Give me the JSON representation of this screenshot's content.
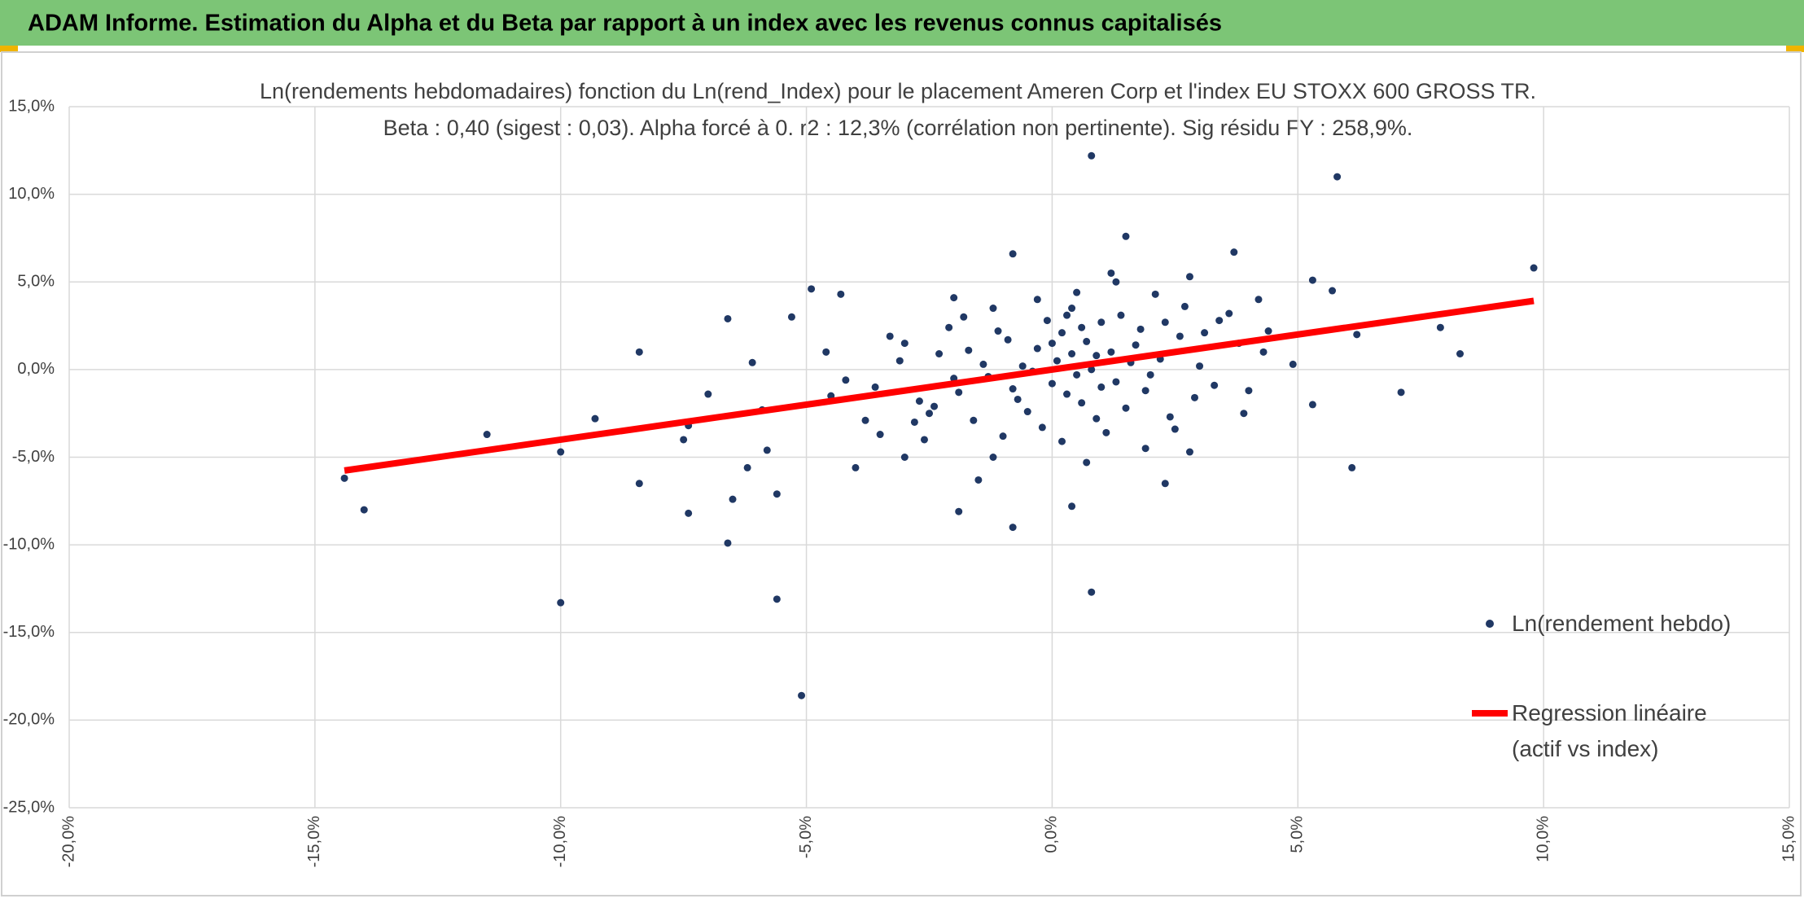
{
  "banner_title": "ADAM Informe. Estimation du Alpha et du Beta par rapport à un index avec les revenus connus capitalisés",
  "chart_data": {
    "type": "scatter",
    "title": "Ln(rendements hebdomadaires) fonction du Ln(rend_Index) pour le placement Ameren Corp et l'index EU STOXX 600 GROSS TR.",
    "subtitle": "Beta : 0,40 (sigest : 0,03). Alpha forcé à 0. r2 : 12,3% (corrélation non pertinente). Sig résidu FY : 258,9%.",
    "xlim": [
      -20,
      15
    ],
    "xticks": [
      {
        "value": -20,
        "label": "-20,0%"
      },
      {
        "value": -15,
        "label": "-15,0%"
      },
      {
        "value": -10,
        "label": "-10,0%"
      },
      {
        "value": -5,
        "label": "-5,0%"
      },
      {
        "value": 0,
        "label": "0,0%"
      },
      {
        "value": 5,
        "label": "5,0%"
      },
      {
        "value": 10,
        "label": "10,0%"
      },
      {
        "value": 15,
        "label": "15,0%"
      }
    ],
    "ylim": [
      -25,
      15
    ],
    "yticks": [
      {
        "value": -25,
        "label": "-25,0%"
      },
      {
        "value": -20,
        "label": "-20,0%"
      },
      {
        "value": -15,
        "label": "-15,0%"
      },
      {
        "value": -10,
        "label": "-10,0%"
      },
      {
        "value": -5,
        "label": "-5,0%"
      },
      {
        "value": 0,
        "label": "0,0%"
      },
      {
        "value": 5,
        "label": "5,0%"
      },
      {
        "value": 10,
        "label": "10,0%"
      },
      {
        "value": 15,
        "label": "15,0%"
      }
    ],
    "grid": true,
    "legend": "right",
    "series": [
      {
        "name": "Ln(rendement hebdo)",
        "type": "scatter",
        "color": "#203864",
        "x": [
          -14.4,
          -14.0,
          -11.5,
          -10.0,
          -10.0,
          -9.3,
          -8.4,
          -8.4,
          -7.5,
          -7.4,
          -7.4,
          -7.0,
          -6.6,
          -6.6,
          -6.5,
          -6.2,
          -6.1,
          -5.6,
          -5.6,
          -5.3,
          -5.1,
          -4.9,
          -4.3,
          -4.0,
          -0.8,
          -0.8,
          0.4,
          0.8,
          0.8,
          1.5,
          2.3,
          2.8,
          5.3,
          5.3,
          5.8,
          5.7,
          6.1,
          6.2,
          7.1,
          7.9,
          8.3,
          9.8,
          4.9,
          -5.8,
          -5.9,
          -4.5,
          -3.5,
          -3.0,
          -2.5,
          -1.9,
          -1.5,
          -1.2,
          0.3,
          1.2,
          2.1,
          3.1,
          3.7,
          4.2,
          4.3,
          -2.0,
          0.1,
          0.5,
          -0.3,
          0.9,
          1.3,
          -0.8,
          0.2,
          1.7,
          -1.4,
          0.6,
          2.2,
          -0.5,
          1.0,
          -1.9,
          0.0,
          2.6,
          -2.3,
          1.5,
          0.4,
          -1.1,
          3.0,
          -0.2,
          1.9,
          -2.7,
          0.7,
          -0.6,
          2.9,
          3.4,
          -3.1,
          1.1,
          -1.6,
          0.3,
          1.4,
          -0.9,
          2.4,
          0.8,
          -1.3,
          3.8,
          -2.1,
          0.5,
          1.8,
          -0.4,
          2.0,
          -3.6,
          0.9,
          -2.8,
          1.2,
          -0.1,
          2.7,
          -1.7,
          3.3,
          0.2,
          -2.4,
          1.6,
          -1.0,
          0.6,
          4.0,
          -3.3,
          2.3,
          -0.7,
          1.0,
          -1.8,
          0.4,
          3.6,
          -4.2,
          2.5,
          -0.3,
          1.3,
          -2.6,
          0.0,
          1.9,
          -1.2,
          2.8,
          -3.8,
          0.7,
          -2.0,
          3.9,
          -4.6,
          4.4,
          -3.0
        ],
        "values": [
          -6.2,
          -8.0,
          -3.7,
          -13.3,
          -4.7,
          -2.8,
          1.0,
          -6.5,
          -4.0,
          -8.2,
          -3.2,
          -1.4,
          2.9,
          -9.9,
          -7.4,
          -5.6,
          0.4,
          -13.1,
          -7.1,
          3.0,
          -18.6,
          4.6,
          4.3,
          -5.6,
          6.6,
          -9.0,
          -7.8,
          12.2,
          -12.7,
          7.6,
          -6.5,
          -4.7,
          5.1,
          -2.0,
          11.0,
          4.5,
          -5.6,
          2.0,
          -1.3,
          2.4,
          0.9,
          5.8,
          0.3,
          -4.6,
          -2.3,
          -1.5,
          -3.7,
          1.5,
          -2.5,
          -8.1,
          -6.3,
          3.5,
          3.1,
          5.5,
          4.3,
          2.1,
          6.7,
          4.0,
          1.0,
          -0.5,
          0.5,
          -0.3,
          1.2,
          0.8,
          -0.7,
          -1.1,
          2.1,
          1.4,
          0.3,
          -1.9,
          0.6,
          -2.4,
          2.7,
          -1.3,
          -0.8,
          1.9,
          0.9,
          -2.2,
          3.5,
          2.2,
          0.2,
          -3.3,
          -1.2,
          -1.8,
          1.6,
          0.2,
          -1.6,
          2.8,
          0.5,
          -3.6,
          -2.9,
          -1.4,
          3.1,
          1.7,
          -2.7,
          0.0,
          -0.4,
          1.5,
          2.4,
          4.4,
          2.3,
          -0.1,
          -0.3,
          -1.0,
          -2.8,
          -3.0,
          1.0,
          2.8,
          3.6,
          1.1,
          -0.9,
          -4.1,
          -2.1,
          0.4,
          -3.8,
          2.4,
          -1.2,
          1.9,
          2.7,
          -1.7,
          -1.0,
          3.0,
          0.9,
          3.2,
          -0.6,
          -3.4,
          4.0,
          5.0,
          -4.0,
          1.5,
          -4.5,
          -5.0,
          5.3,
          -2.9,
          -5.3,
          4.1,
          -2.5,
          1.0,
          2.2,
          -5.0
        ]
      },
      {
        "name": "Regression linéaire (actif vs index)",
        "type": "line",
        "color": "#ff0000",
        "x": [
          -14.4,
          9.8
        ],
        "values": [
          -5.76,
          3.92
        ]
      }
    ]
  }
}
